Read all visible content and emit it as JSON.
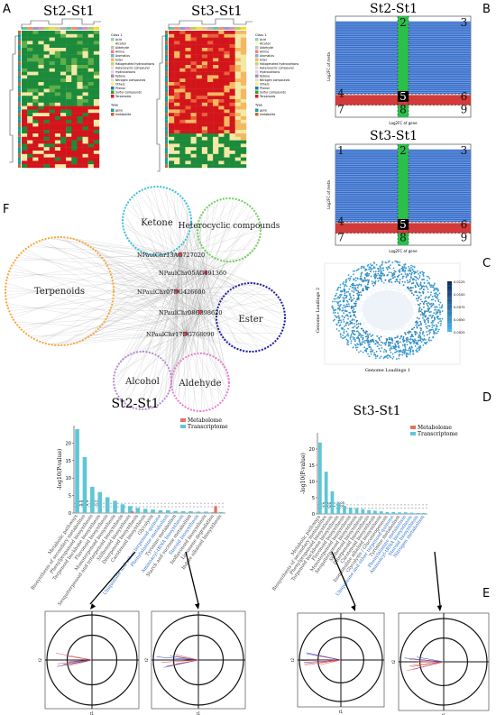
{
  "figure": {
    "panels": {
      "A": {
        "letter": "A",
        "left_title": "St2-St1",
        "right_title": "St3-St1",
        "legend_items": [
          "Acid",
          "Alcohol",
          "Aldehyde",
          "Amine",
          "Aromatics",
          "Ester",
          "Halogenated hydrocarbons",
          "Heterocyclic compound",
          "Hydrocarbons",
          "Ketone",
          "Nitrogen compounds",
          "Others",
          "Phenol",
          "Sulfur compounds",
          "Terpenoids"
        ],
        "type_legend": [
          "gene",
          "metabolite"
        ],
        "legend_titles": [
          "Class 1",
          "Type"
        ]
      },
      "B": {
        "letter": "B",
        "top_title": "St2-St1",
        "bottom_title": "St3-St1",
        "quadrants_top": [
          "2",
          "3",
          "4",
          "5",
          "6",
          "7",
          "8",
          "9"
        ],
        "quadrants_bottom": [
          "1",
          "2",
          "3",
          "4",
          "5",
          "6",
          "7",
          "8",
          "9"
        ],
        "xlabel": "Log2FC of gene",
        "ylabel": "Log2FC of meta"
      },
      "C": {
        "letter": "C",
        "xlabel": "Genome Loadings 1",
        "ylabel": "Genome Loadings 2",
        "colorbar_ticks": [
          "0.0125",
          "0.0100",
          "0.0075",
          "0.0050",
          "0.0025"
        ]
      },
      "D": {
        "letter": "D",
        "left_title": "St2-St1",
        "right_title": "St3-St1",
        "legend": [
          "Metabolome",
          "Transcriptome"
        ],
        "ylabel": "-log10(P-value)",
        "pvalue_lines": [
          "p-value = 0.01",
          "p-value = 0.05"
        ]
      },
      "E": {
        "letter": "E"
      },
      "F": {
        "letter": "F",
        "groups": [
          "Ketone",
          "Heterocyclic compounds",
          "Terpenoids",
          "Ester",
          "Alcohol",
          "Aldehyde"
        ],
        "genes": [
          "NPaulChr13AG727020",
          "NPaulChr05AG491360",
          "NPaulChr07DG426600",
          "NPaulChr08G398620",
          "NPaulChr17DG768090"
        ]
      }
    },
    "pathways_left": [
      "Metabolic pathways",
      "Biosynthesis of secondary metabolites",
      "Phenylpropanoid biosynthesis",
      "Terpenoid backbone biosynthesis",
      "Flavonoid biosynthesis",
      "Monoterpenoid biosynthesis",
      "Sesquiterpenoid and triterpenoid biosynthesis",
      "Stilbenoid biosynthesis",
      "Diterpenoid biosynthesis",
      "Carotenoid biosynthesis",
      "Glycolysis",
      "Ubiquinone and other terpenoid-quinone",
      "Phenylalanine metabolism",
      "Tyrosine metabolism",
      "Aminoacyl-tRNA biosynthesis",
      "Starch and sucrose metabolism",
      "Steroid biosynthesis",
      "Isoflavonoid biosynthesis",
      "Limonene degradation",
      "Indole alkaloid biosynthesis"
    ],
    "pathways_right": [
      "Metabolic pathways",
      "Biosynthesis of secondary metabolites",
      "Phenylpropanoid biosynthesis",
      "Terpenoid backbone biosynthesis",
      "Flavonoid biosynthesis",
      "Monoterpenoid biosynthesis",
      "Sesquiterpenoid biosynthesis",
      "Stilbenoid biosynthesis",
      "Diterpenoid biosynthesis",
      "Carotenoid biosynthesis",
      "Isoquinoline alkaloid biosynthesis",
      "Glycolysis / Gluconeogenesis",
      "Ubiquinone and other terpenoid-quinone",
      "Tyrosine metabolism",
      "Phenylalanine metabolism",
      "Aminoacyl-tRNA biosynthesis",
      "Steroid biosynthesis",
      "Nitrogen metabolism"
    ],
    "e_axes": [
      "t1",
      "t2"
    ],
    "colors": {
      "heat_red": "#d2151b",
      "heat_green": "#1c8a3a",
      "quad_blue": "#2864c8",
      "quad_green": "#2dbf4c",
      "quad_red": "#d33a3a",
      "orange": "#f5a93a",
      "cyan": "#38c3d9",
      "light_green": "#6fcf60",
      "navy": "#1c1c9c",
      "purple": "#b98ae0",
      "pink": "#e67fd0",
      "bar_metab": "#e5735f",
      "bar_trans": "#5fc6d6"
    }
  },
  "chart_data": [
    {
      "type": "bar",
      "title": "St2-St1",
      "ylabel": "-log10(P-value)",
      "ylim": [
        0,
        25
      ],
      "categories": [
        "Metabolic pathways",
        "Biosynthesis of secondary metabolites",
        "Phenylpropanoid biosynthesis",
        "Terpenoid backbone biosynthesis",
        "Flavonoid biosynthesis",
        "Monoterpenoid biosynthesis",
        "Sesquiterpenoid and triterpenoid biosynthesis",
        "Stilbenoid biosynthesis",
        "Diterpenoid biosynthesis",
        "Carotenoid biosynthesis",
        "Glycolysis",
        "Ubiquinone and other terpenoid-quinone",
        "Phenylalanine metabolism",
        "Tyrosine metabolism",
        "Aminoacyl-tRNA biosynthesis",
        "Starch and sucrose metabolism",
        "Steroid biosynthesis",
        "Isoflavonoid biosynthesis",
        "Limonene degradation",
        "Indole alkaloid biosynthesis"
      ],
      "series": [
        {
          "name": "Transcriptome",
          "values": [
            24,
            16,
            7.5,
            6,
            4.5,
            3.5,
            2.5,
            2,
            1.5,
            1.2,
            1,
            0.8,
            0.8,
            0.6,
            0.5,
            0.5,
            0.4,
            0.4,
            0.3,
            0.3
          ]
        },
        {
          "name": "Metabolome",
          "values": [
            0,
            0,
            0,
            0,
            0,
            0,
            0,
            0.5,
            0,
            0,
            0,
            0,
            0,
            0,
            0,
            0,
            0,
            0,
            2,
            0
          ]
        }
      ]
    },
    {
      "type": "bar",
      "title": "St3-St1",
      "ylabel": "-log10(P-value)",
      "ylim": [
        0,
        25
      ],
      "categories": [
        "Metabolic pathways",
        "Biosynthesis of secondary metabolites",
        "Phenylpropanoid biosynthesis",
        "Terpenoid backbone biosynthesis",
        "Flavonoid biosynthesis",
        "Monoterpenoid biosynthesis",
        "Sesquiterpenoid biosynthesis",
        "Stilbenoid biosynthesis",
        "Diterpenoid biosynthesis",
        "Carotenoid biosynthesis",
        "Isoquinoline alkaloid biosynthesis",
        "Glycolysis / Gluconeogenesis",
        "Ubiquinone and other terpenoid-quinone",
        "Tyrosine metabolism",
        "Phenylalanine metabolism",
        "Aminoacyl-tRNA biosynthesis",
        "Steroid biosynthesis",
        "Nitrogen metabolism"
      ],
      "series": [
        {
          "name": "Transcriptome",
          "values": [
            22,
            13,
            7,
            3.5,
            2.5,
            2,
            1.8,
            1.5,
            1.2,
            1,
            0.8,
            0.6,
            0.6,
            0.5,
            0.5,
            0.4,
            0.3,
            0.3
          ]
        },
        {
          "name": "Metabolome",
          "values": [
            0,
            0,
            0,
            0,
            0,
            0,
            0,
            0,
            0,
            0,
            0,
            0,
            0,
            0,
            0,
            0,
            0,
            0
          ]
        }
      ]
    }
  ]
}
